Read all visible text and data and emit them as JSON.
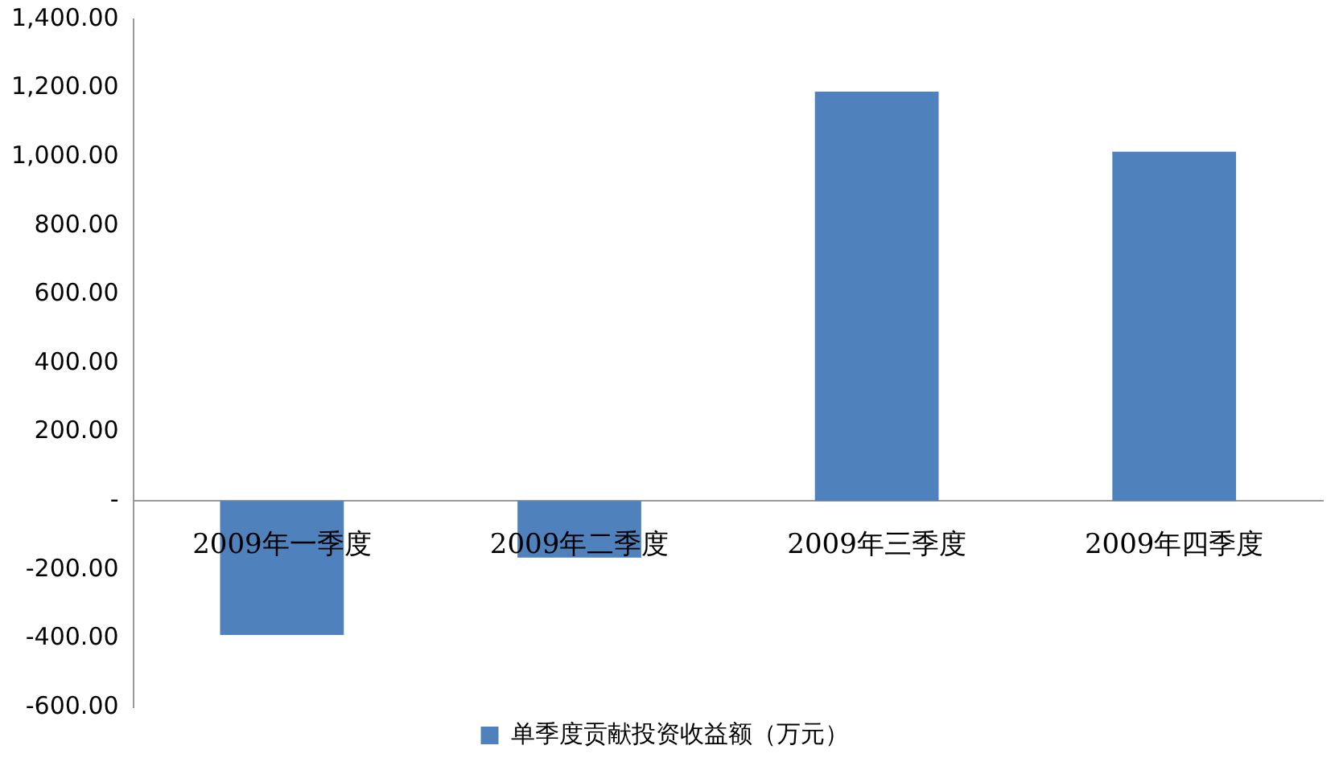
{
  "chart_data": {
    "type": "bar",
    "categories": [
      "2009年一季度",
      "2009年二季度",
      "2009年三季度",
      "2009年四季度"
    ],
    "series": [
      {
        "name": "单季度贡献投资收益额（万元）",
        "color": "#4f81bd",
        "values": [
          -390,
          -165,
          1190,
          1015
        ]
      }
    ],
    "ylim": [
      -600,
      1400
    ],
    "yticks": [
      {
        "value": -600,
        "label": "-600.00"
      },
      {
        "value": -400,
        "label": "-400.00"
      },
      {
        "value": -200,
        "label": "-200.00"
      },
      {
        "value": 0,
        "label": "-"
      },
      {
        "value": 200,
        "label": "200.00"
      },
      {
        "value": 400,
        "label": "400.00"
      },
      {
        "value": 600,
        "label": "600.00"
      },
      {
        "value": 800,
        "label": "800.00"
      },
      {
        "value": 1000,
        "label": "1,000.00"
      },
      {
        "value": 1200,
        "label": "1,200.00"
      },
      {
        "value": 1400,
        "label": "1,400.00"
      }
    ],
    "grid": false,
    "legend": "bottom"
  }
}
